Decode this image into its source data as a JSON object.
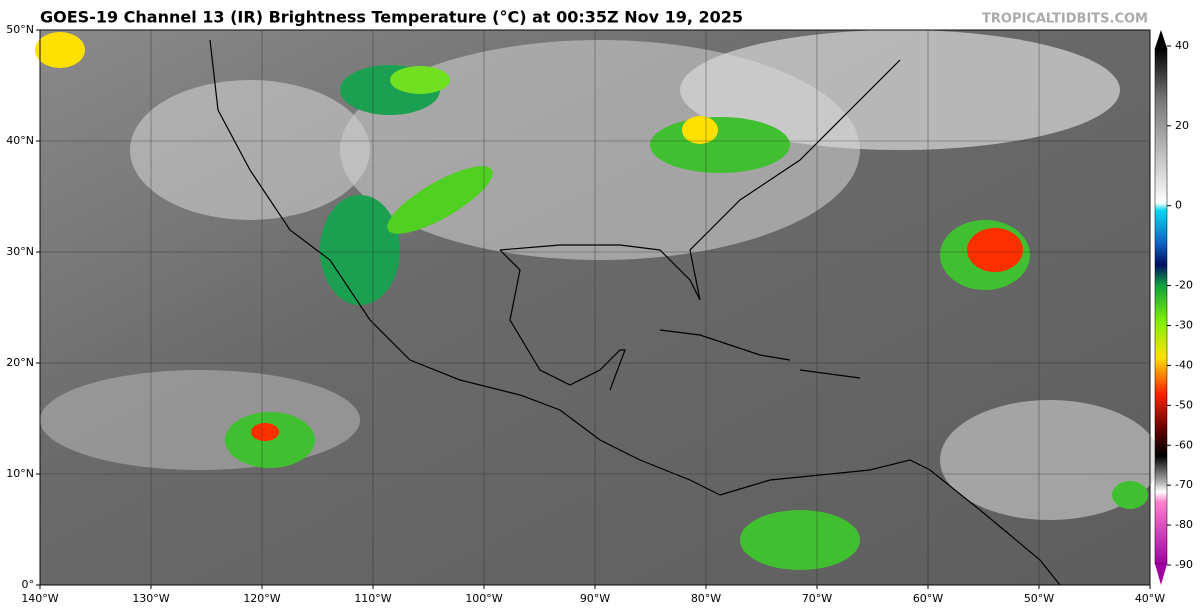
{
  "title": "GOES-19 Channel 13 (IR) Brightness Temperature (°C) at 00:35Z Nov 19, 2025",
  "watermark": "TROPICALTIDBITS.COM",
  "map": {
    "xlim": [
      -140,
      -40
    ],
    "ylim": [
      0,
      50
    ],
    "xticks": [
      {
        "value": -140,
        "label": "140°W"
      },
      {
        "value": -130,
        "label": "130°W"
      },
      {
        "value": -120,
        "label": "120°W"
      },
      {
        "value": -110,
        "label": "110°W"
      },
      {
        "value": -100,
        "label": "100°W"
      },
      {
        "value": -90,
        "label": "90°W"
      },
      {
        "value": -80,
        "label": "80°W"
      },
      {
        "value": -70,
        "label": "70°W"
      },
      {
        "value": -60,
        "label": "60°W"
      },
      {
        "value": -50,
        "label": "50°W"
      },
      {
        "value": -40,
        "label": "40°W"
      }
    ],
    "yticks": [
      {
        "value": 0,
        "label": "0°"
      },
      {
        "value": 10,
        "label": "10°N"
      },
      {
        "value": 20,
        "label": "20°N"
      },
      {
        "value": 30,
        "label": "30°N"
      },
      {
        "value": 40,
        "label": "40°N"
      },
      {
        "value": 50,
        "label": "50°N"
      }
    ],
    "grid": true
  },
  "colorbar": {
    "lim": [
      -95,
      45
    ],
    "ticks": [
      40,
      20,
      0,
      -20,
      -30,
      -40,
      -50,
      -60,
      -70,
      -80,
      -90
    ]
  }
}
